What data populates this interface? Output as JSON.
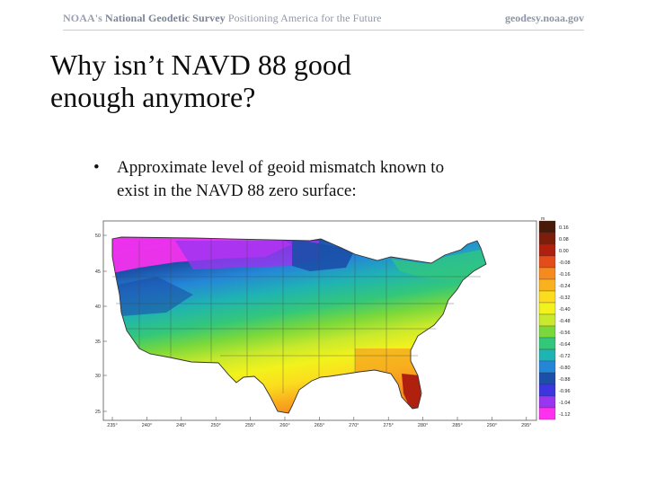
{
  "header": {
    "brand": "NOAA's",
    "org": "National Geodetic Survey",
    "tagline": "Positioning America for the Future",
    "site": "geodesy.noaa.gov"
  },
  "slide": {
    "title_line1": "Why isn’t NAVD 88 good",
    "title_line2": "enough anymore?",
    "bullet_symbol": "•",
    "bullet_line1": "Approximate level of geoid mismatch known to",
    "bullet_line2": "exist in the NAVD 88 zero surface:"
  },
  "map": {
    "lat_labels": [
      "50",
      "45",
      "40",
      "35",
      "30",
      "25"
    ],
    "lon_labels": [
      "235°",
      "240°",
      "245°",
      "250°",
      "255°",
      "260°",
      "265°",
      "270°",
      "275°",
      "280°",
      "285°",
      "290°",
      "295°"
    ],
    "colorbar_unit": "m",
    "colorbar_values": [
      "0.16",
      "0.08",
      "0.00",
      "-0.08",
      "-0.16",
      "-0.24",
      "-0.32",
      "-0.40",
      "-0.48",
      "-0.56",
      "-0.64",
      "-0.72",
      "-0.80",
      "-0.88",
      "-0.96",
      "-1.04",
      "-1.12"
    ],
    "colorbar_colors": [
      "#4a1a08",
      "#7b1f0c",
      "#b0200e",
      "#e24d1a",
      "#f58a1f",
      "#f9b21d",
      "#fbdd1e",
      "#f2f21c",
      "#c9e92c",
      "#7bd83a",
      "#33c77a",
      "#1fb3b3",
      "#2586d8",
      "#1b4fa8",
      "#3b36e0",
      "#9a35f0",
      "#ff31ee"
    ]
  }
}
